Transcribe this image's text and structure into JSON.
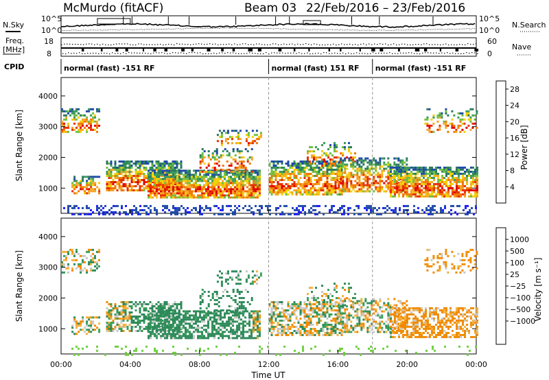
{
  "header": {
    "station": "McMurdo (fitACF)",
    "beam": "Beam 03",
    "date_range": "22/Feb/2016 – 23/Feb/2016"
  },
  "top_panels": {
    "nsky_label": "N.Sky",
    "nsearch_label": "N.Search",
    "noise_ticks": [
      "10^5",
      "10^0"
    ],
    "freq_label_1": "Freq.",
    "freq_label_2": "[MHz]",
    "freq_ticks": [
      "18",
      "8"
    ],
    "nave_label": "Nave",
    "nave_ticks": [
      "60",
      "0"
    ],
    "cpid_label": "CPID"
  },
  "cpid_segments": [
    {
      "label": "normal (fast) -151 RF",
      "start_hour": 0,
      "end_hour": 12
    },
    {
      "label": "normal (fast) 151 RF",
      "start_hour": 12,
      "end_hour": 18
    },
    {
      "label": "normal (fast) -151 RF",
      "start_hour": 18,
      "end_hour": 24
    }
  ],
  "chart_data": [
    {
      "type": "heatmap",
      "title": "",
      "xlabel": "Time UT",
      "ylabel": "Slant Range [km]",
      "xlim": [
        0,
        24
      ],
      "ylim": [
        180,
        4600
      ],
      "x_ticks": [
        "00:00",
        "04:00",
        "08:00",
        "12:00",
        "16:00",
        "20:00",
        "00:00"
      ],
      "y_ticks": [
        1000,
        2000,
        3000,
        4000
      ],
      "colorbar": {
        "label": "Power [dB]",
        "ticks": [
          4,
          8,
          12,
          16,
          20,
          24,
          28
        ],
        "range": [
          0,
          30
        ],
        "colors": [
          "#1a1aff",
          "#1f4aa8",
          "#2a7a5a",
          "#3a9a5a",
          "#6fbf40",
          "#f2d000",
          "#f5a623",
          "#f07800",
          "#e63000",
          "#e00000"
        ]
      }
    },
    {
      "type": "heatmap",
      "title": "",
      "xlabel": "Time UT",
      "ylabel": "Slant Range [km]",
      "xlim": [
        0,
        24
      ],
      "ylim": [
        180,
        4600
      ],
      "x_ticks": [
        "00:00",
        "04:00",
        "08:00",
        "12:00",
        "16:00",
        "20:00",
        "00:00"
      ],
      "y_ticks": [
        1000,
        2000,
        3000,
        4000
      ],
      "colorbar": {
        "label": "Velocity [m s⁻¹]",
        "ticks": [
          "1000",
          "500",
          "100",
          "25",
          "−25",
          "−100",
          "−500",
          "−1000"
        ],
        "colors": [
          "#1a3ac8",
          "#2a5a9a",
          "#2e8a5a",
          "#3aa05a",
          "#6fd040",
          "#c8c8c8",
          "#f5b040",
          "#f08a00",
          "#e84000",
          "#e00000"
        ]
      }
    }
  ],
  "x_axis_title": "Time UT"
}
